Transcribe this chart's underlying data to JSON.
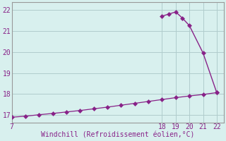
{
  "title": "",
  "xlabel": "Windchill (Refroidissement éolien,°C)",
  "ylabel": "",
  "bg_color": "#d8f0ee",
  "line_color": "#882288",
  "grid_color": "#b0cccc",
  "axis_color": "#999999",
  "text_color": "#882288",
  "xlim": [
    7,
    22.5
  ],
  "ylim": [
    16.65,
    22.35
  ],
  "yticks": [
    17,
    18,
    19,
    20,
    21,
    22
  ],
  "xticks": [
    7,
    18,
    19,
    20,
    21,
    22
  ],
  "line1_x": [
    7,
    8,
    9,
    10,
    11,
    12,
    13,
    14,
    15,
    16,
    17,
    18,
    19,
    20,
    21,
    22
  ],
  "line1_y": [
    16.9,
    16.95,
    17.02,
    17.08,
    17.15,
    17.22,
    17.3,
    17.38,
    17.47,
    17.56,
    17.65,
    17.74,
    17.83,
    17.91,
    17.98,
    18.07
  ],
  "line2_x": [
    18,
    18.5,
    19,
    19.5,
    20,
    21,
    22
  ],
  "line2_y": [
    21.7,
    21.8,
    21.9,
    21.6,
    21.25,
    19.95,
    18.07
  ],
  "markersize": 3.5
}
